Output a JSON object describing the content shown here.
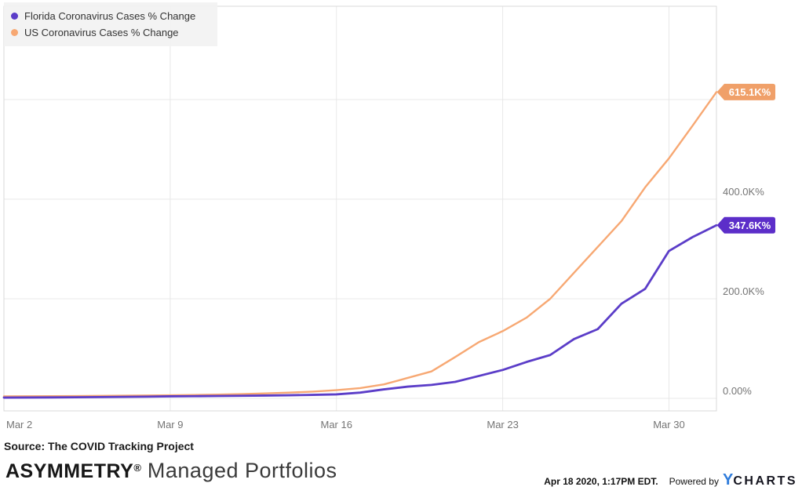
{
  "legend": {
    "items": [
      {
        "label": "Florida Coronavirus Cases % Change",
        "color": "#5b3dc8"
      },
      {
        "label": "US Coronavirus Cases % Change",
        "color": "#f7a873"
      }
    ]
  },
  "chart_data": {
    "type": "line",
    "title": "",
    "xlabel": "",
    "ylabel": "",
    "grid": true,
    "legend_position": "top-left",
    "x": [
      "Mar 2",
      "Mar 3",
      "Mar 4",
      "Mar 5",
      "Mar 6",
      "Mar 7",
      "Mar 8",
      "Mar 9",
      "Mar 10",
      "Mar 11",
      "Mar 12",
      "Mar 13",
      "Mar 14",
      "Mar 15",
      "Mar 16",
      "Mar 17",
      "Mar 18",
      "Mar 19",
      "Mar 20",
      "Mar 21",
      "Mar 22",
      "Mar 23",
      "Mar 24",
      "Mar 25",
      "Mar 26",
      "Mar 27",
      "Mar 28",
      "Mar 29",
      "Mar 30",
      "Mar 31",
      "Apr 1"
    ],
    "x_tick_indices": [
      0,
      7,
      14,
      21,
      28
    ],
    "x_tick_labels": [
      "Mar 2",
      "Mar 9",
      "Mar 16",
      "Mar 23",
      "Mar 30"
    ],
    "y_axis": {
      "unit": "K% (thousand percent)",
      "ticks": [
        {
          "value": 0,
          "label": "0.00%"
        },
        {
          "value": 200,
          "label": "200.0K%"
        },
        {
          "value": 400,
          "label": "400.0K%"
        },
        {
          "value": 600,
          "label": ""
        }
      ],
      "range_k_percent": [
        -26,
        790
      ]
    },
    "series": [
      {
        "name": "Florida Coronavirus Cases % Change",
        "color": "#5b3dc8",
        "line_width": 2.8,
        "end_label": "347.6K%",
        "end_label_color": "#5c2ec9",
        "values_k_percent": [
          1.5,
          1.7,
          1.9,
          2.2,
          2.5,
          2.9,
          3.4,
          4.0,
          4.3,
          4.7,
          5.1,
          5.6,
          6.2,
          7.0,
          8.0,
          11.5,
          18,
          23.5,
          27,
          33,
          45,
          57,
          73,
          87,
          119,
          139,
          190,
          220,
          296,
          324,
          347.6
        ]
      },
      {
        "name": "US Coronavirus Cases % Change",
        "color": "#f7a873",
        "line_width": 2.4,
        "end_label": "615.1K%",
        "end_label_color": "#f0a069",
        "values_k_percent": [
          4.0,
          4.2,
          4.4,
          4.7,
          5.0,
          5.3,
          5.7,
          6.2,
          6.8,
          7.6,
          8.6,
          10.0,
          11.5,
          13.5,
          16.5,
          20.5,
          28,
          41,
          54,
          83,
          113,
          135,
          162,
          200,
          252,
          304,
          356,
          424,
          482,
          548,
          615.1
        ]
      }
    ],
    "style": {
      "grid_color": "#e8e8e8",
      "border_color": "#d9d9d9",
      "tick_color": "#757575",
      "badge_text_color": "#ffffff"
    }
  },
  "source": {
    "text": "Source: The COVID Tracking Project"
  },
  "branding": {
    "name": "ASYMMETRY",
    "registered": "®",
    "suffix": " Managed Portfolios"
  },
  "footer": {
    "timestamp": "Apr 18 2020, 1:17PM EDT.",
    "powered_by": "Powered by",
    "logo_y": "Y",
    "logo_charts": "CHARTS",
    "logo_y_color": "#2f7cdb"
  }
}
